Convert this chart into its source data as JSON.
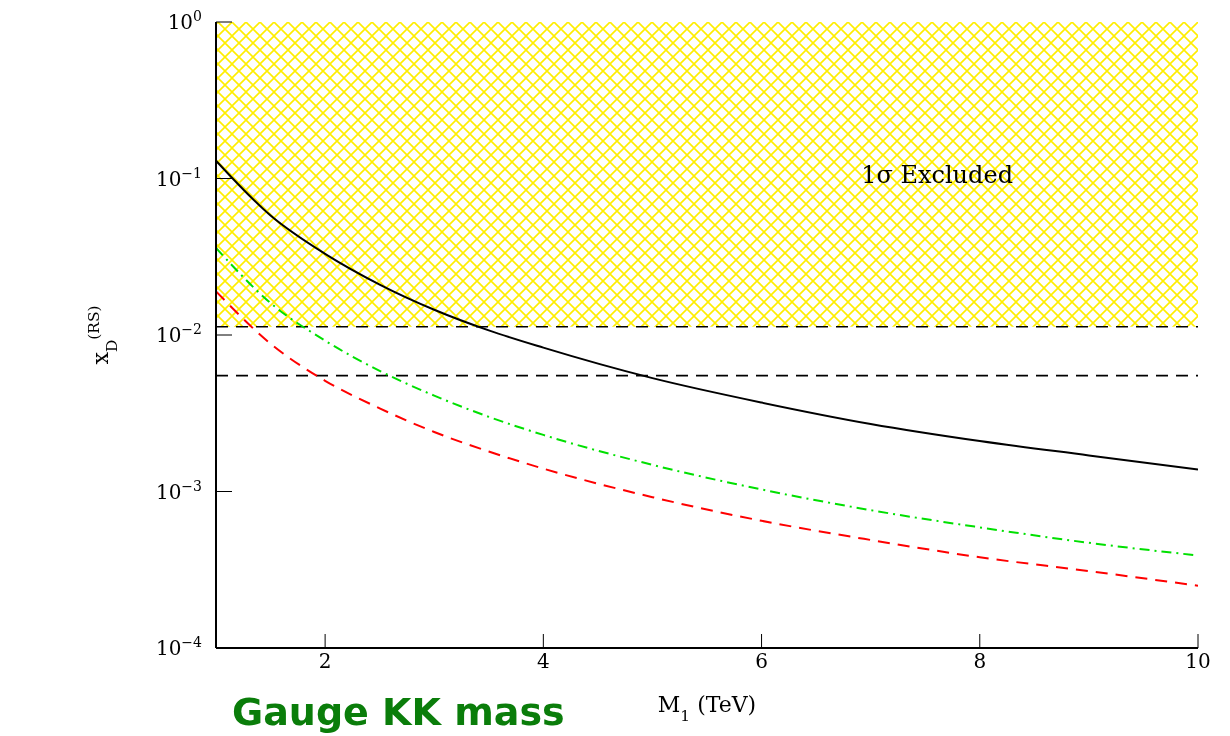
{
  "chart_data": {
    "type": "line",
    "xlabel": "M$_{1}$ (TeV)",
    "ylabel": "x$_{D}$$^{(RS)}$",
    "x": [
      1,
      1.5,
      2,
      2.5,
      3,
      3.5,
      4,
      5,
      6,
      7,
      8,
      9,
      10
    ],
    "series": [
      {
        "color": "#000000",
        "line_style": "solid",
        "values": [
          0.13,
          0.058,
          0.033,
          0.021,
          0.0145,
          0.0107,
          0.0083,
          0.0053,
          0.0037,
          0.0027,
          0.0021,
          0.0017,
          0.00138
        ]
      },
      {
        "color": "#00e000",
        "line_style": "dashdot",
        "values": [
          0.036,
          0.016,
          0.0092,
          0.0059,
          0.0041,
          0.003,
          0.0023,
          0.00148,
          0.00103,
          0.00076,
          0.00059,
          0.00047,
          0.00039
        ]
      },
      {
        "color": "#ff0000",
        "line_style": "dashed",
        "values": [
          0.019,
          0.0088,
          0.0051,
          0.0034,
          0.0024,
          0.0018,
          0.0014,
          0.00092,
          0.00065,
          0.00049,
          0.00038,
          0.00031,
          0.00025
        ]
      }
    ],
    "log": "y",
    "xlim": [
      1,
      10
    ],
    "xticks": [
      2,
      4,
      6,
      8,
      10
    ],
    "ylim": [
      0.0001,
      1
    ],
    "yticks": [
      {
        "value": 0.0001,
        "label": "10$^{−4}$"
      },
      {
        "value": 0.001,
        "label": "10$^{−3}$"
      },
      {
        "value": 0.01,
        "label": "10$^{−2}$"
      },
      {
        "value": 0.1,
        "label": "10$^{−1}$"
      },
      {
        "value": 1,
        "label": "10$^{0}$"
      }
    ],
    "bands": [
      {
        "axis": "y",
        "from": 0.0113,
        "to": 1,
        "label": "1σ Excluded",
        "color": "#ffee00"
      }
    ],
    "ref_lines": [
      {
        "axis": "y",
        "value": 0.0113,
        "line_style": "dashed",
        "color": "#000000"
      },
      {
        "axis": "y",
        "value": 0.0055,
        "line_style": "dashed",
        "color": "#000000"
      }
    ],
    "annotations": [
      "Gauge KK mass"
    ],
    "grid": false,
    "legend": false,
    "marker": "none"
  }
}
